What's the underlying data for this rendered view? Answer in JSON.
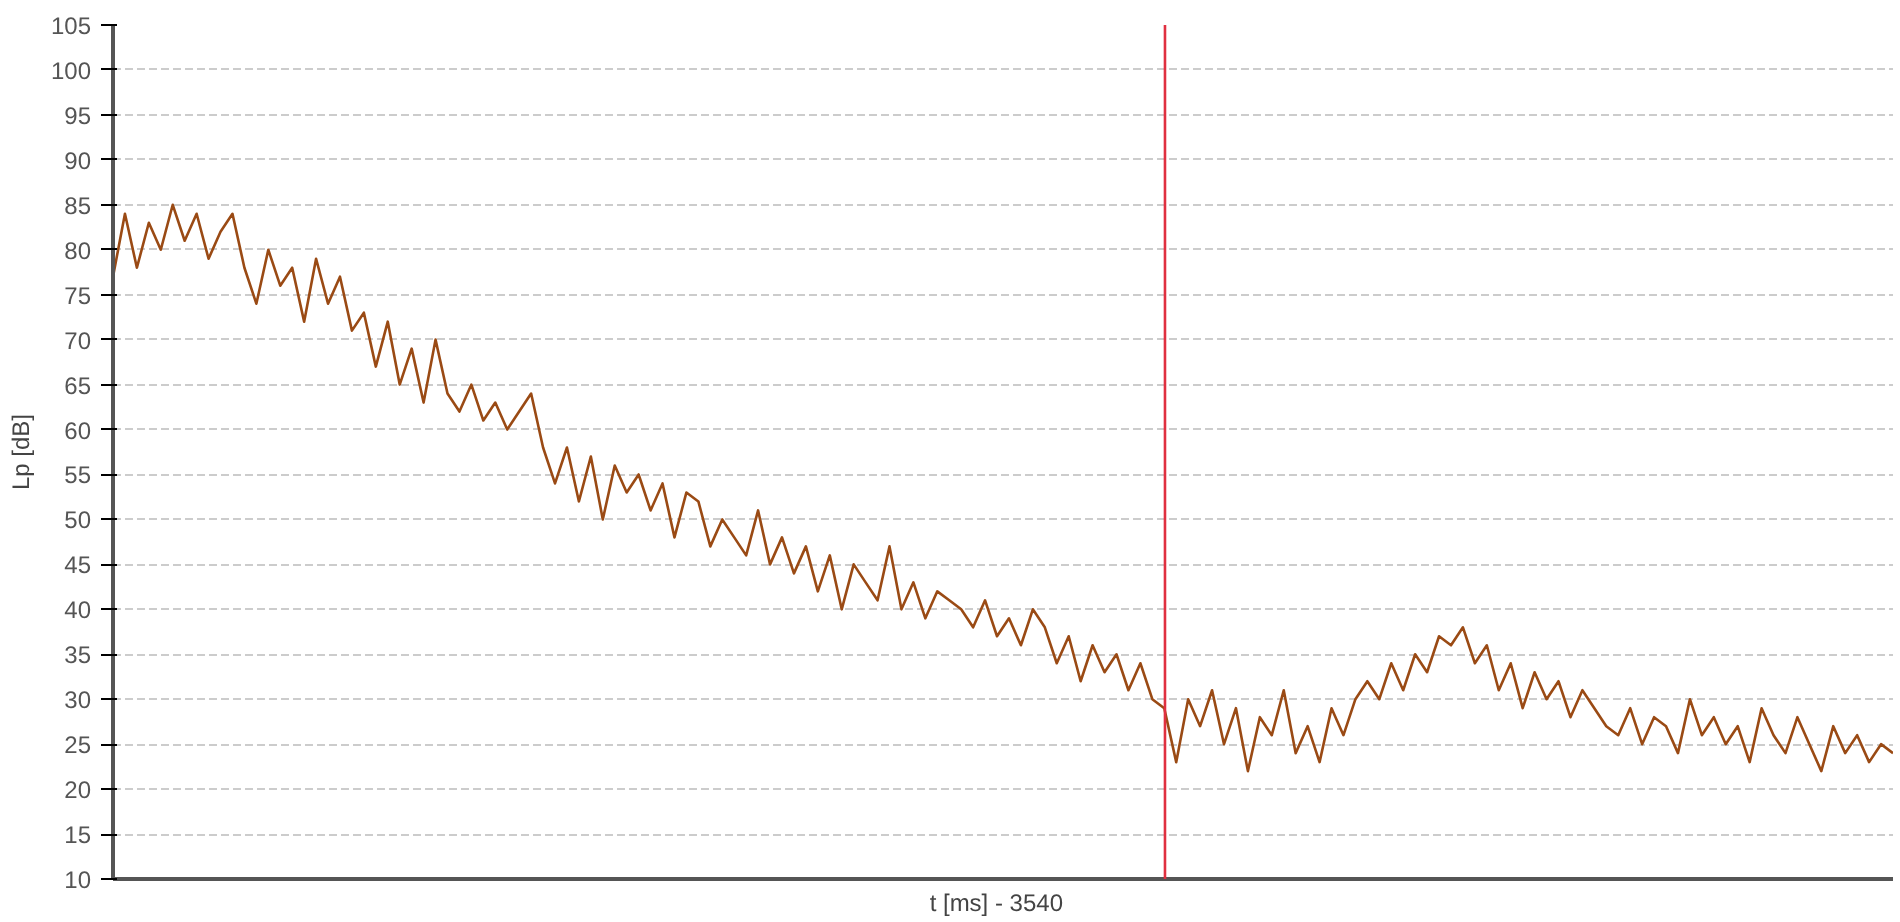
{
  "chart_data": {
    "type": "line",
    "xlabel": "t [ms]  -  3540",
    "ylabel": "Lp [dB]",
    "categories": [
      null,
      null,
      null,
      null,
      null,
      null,
      null,
      null,
      null,
      null,
      null,
      null,
      null,
      null,
      null,
      null,
      null,
      null,
      null,
      null,
      null,
      null,
      null,
      null,
      null,
      null,
      null,
      null,
      null,
      null,
      null,
      null,
      null,
      null,
      null,
      null,
      null,
      null,
      null,
      null,
      null,
      null,
      null,
      null,
      null,
      null,
      null,
      null,
      null,
      null,
      null,
      null,
      null,
      null,
      null,
      null,
      null,
      null,
      null,
      null,
      null,
      null,
      null,
      null,
      null,
      null,
      null,
      null,
      null,
      null,
      null,
      null,
      null,
      null,
      null,
      null,
      null,
      null,
      null,
      null,
      null,
      null,
      null,
      null,
      null,
      null,
      null,
      null,
      null,
      null,
      null,
      null,
      null,
      null,
      null,
      null,
      null,
      null,
      null,
      null,
      null,
      null,
      null,
      null,
      null,
      null,
      null,
      null,
      null,
      null,
      null,
      null,
      null,
      null,
      null,
      null,
      null,
      null,
      null,
      null,
      null,
      null,
      null,
      null,
      null,
      null,
      null,
      null,
      null,
      null,
      null,
      null,
      null,
      null,
      null,
      null,
      null,
      null,
      null,
      null,
      null,
      null,
      null,
      null,
      null,
      null,
      null,
      null,
      null,
      null
    ],
    "series": [
      {
        "color": "#9a4a14",
        "values": [
          77,
          84,
          78,
          83,
          80,
          85,
          81,
          84,
          79,
          82,
          84,
          78,
          74,
          80,
          76,
          78,
          72,
          79,
          74,
          77,
          71,
          73,
          67,
          72,
          65,
          69,
          63,
          70,
          64,
          62,
          65,
          61,
          63,
          60,
          62,
          64,
          58,
          54,
          58,
          52,
          57,
          50,
          56,
          53,
          55,
          51,
          54,
          48,
          53,
          52,
          47,
          50,
          48,
          46,
          51,
          45,
          48,
          44,
          47,
          42,
          46,
          40,
          45,
          43,
          41,
          47,
          40,
          43,
          39,
          42,
          41,
          40,
          38,
          41,
          37,
          39,
          36,
          40,
          38,
          34,
          37,
          32,
          36,
          33,
          35,
          31,
          34,
          30,
          29,
          23,
          30,
          27,
          31,
          25,
          29,
          22,
          28,
          26,
          31,
          24,
          27,
          23,
          29,
          26,
          30,
          32,
          30,
          34,
          31,
          35,
          33,
          37,
          36,
          38,
          34,
          36,
          31,
          34,
          29,
          33,
          30,
          32,
          28,
          31,
          29,
          27,
          26,
          29,
          25,
          28,
          27,
          24,
          30,
          26,
          28,
          25,
          27,
          23,
          29,
          26,
          24,
          28,
          25,
          22,
          27,
          24,
          26,
          23,
          25,
          24
        ]
      }
    ],
    "ylim": [
      10,
      105
    ],
    "yticks": [
      10,
      15,
      20,
      25,
      30,
      35,
      40,
      45,
      50,
      55,
      60,
      65,
      70,
      75,
      80,
      85,
      90,
      95,
      100,
      105
    ],
    "grid": "y",
    "tick_labels": "y",
    "marker": "none",
    "line_style": "solid"
  }
}
